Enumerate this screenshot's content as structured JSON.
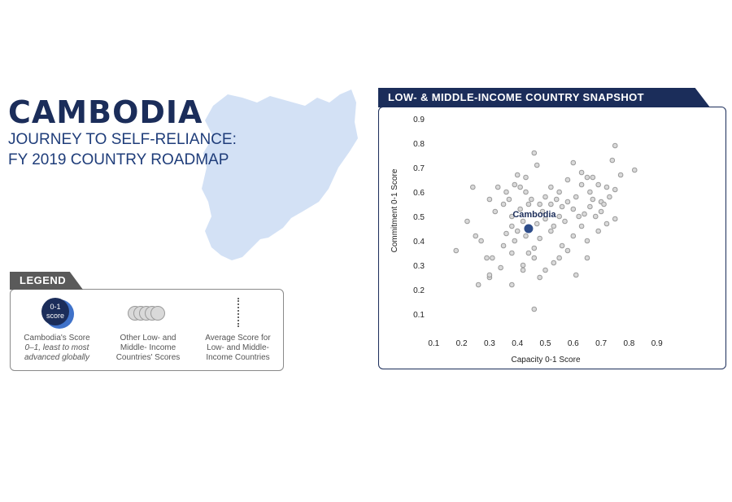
{
  "header": {
    "country": "CAMBODIA",
    "subtitle_line1": "JOURNEY TO SELF-RELIANCE:",
    "subtitle_line2": "FY 2019 COUNTRY ROADMAP"
  },
  "legend": {
    "title": "LEGEND",
    "score_icon_text_1": "0-1",
    "score_icon_text_2": "score",
    "item1_line1": "Cambodia's Score",
    "item1_line2": "0–1, least to most",
    "item1_line3": "advanced globally",
    "item2_line1": "Other Low- and",
    "item2_line2": "Middle- Income",
    "item2_line3": "Countries' Scores",
    "item3_line1": "Average Score for",
    "item3_line2": "Low- and Middle-",
    "item3_line3": "Income Countries"
  },
  "colors": {
    "navy": "#1b2d5a",
    "accent_blue": "#3f72c9",
    "map_fill": "#d3e1f5",
    "point_fill": "#d9d9d9",
    "point_stroke": "#9a9a9a",
    "highlight": "#2e4d8a"
  },
  "chart_data": {
    "type": "scatter",
    "title": "LOW- & MIDDLE-INCOME COUNTRY SNAPSHOT",
    "xlabel": "Capacity 0-1 Score",
    "ylabel": "Commitment 0-1 Score",
    "xlim": [
      0,
      0.9
    ],
    "ylim": [
      0,
      0.9
    ],
    "xticks": [
      "0.1",
      "0.2",
      "0.3",
      "0.4",
      "0.5",
      "0.6",
      "0.7",
      "0.8",
      "0.9"
    ],
    "yticks": [
      "0.1",
      "0.2",
      "0.3",
      "0.4",
      "0.5",
      "0.6",
      "0.7",
      "0.8",
      "0.9"
    ],
    "grid": false,
    "highlight": {
      "label": "Cambodia",
      "x": 0.44,
      "y": 0.45
    },
    "points": [
      [
        0.46,
        0.76
      ],
      [
        0.6,
        0.72
      ],
      [
        0.75,
        0.79
      ],
      [
        0.82,
        0.69
      ],
      [
        0.77,
        0.67
      ],
      [
        0.74,
        0.73
      ],
      [
        0.63,
        0.68
      ],
      [
        0.65,
        0.66
      ],
      [
        0.67,
        0.66
      ],
      [
        0.69,
        0.63
      ],
      [
        0.72,
        0.62
      ],
      [
        0.75,
        0.61
      ],
      [
        0.73,
        0.58
      ],
      [
        0.7,
        0.56
      ],
      [
        0.66,
        0.6
      ],
      [
        0.63,
        0.63
      ],
      [
        0.58,
        0.65
      ],
      [
        0.55,
        0.6
      ],
      [
        0.52,
        0.62
      ],
      [
        0.5,
        0.58
      ],
      [
        0.48,
        0.55
      ],
      [
        0.47,
        0.71
      ],
      [
        0.43,
        0.66
      ],
      [
        0.4,
        0.67
      ],
      [
        0.41,
        0.62
      ],
      [
        0.39,
        0.63
      ],
      [
        0.36,
        0.6
      ],
      [
        0.37,
        0.57
      ],
      [
        0.35,
        0.55
      ],
      [
        0.32,
        0.52
      ],
      [
        0.38,
        0.5
      ],
      [
        0.41,
        0.53
      ],
      [
        0.44,
        0.55
      ],
      [
        0.45,
        0.57
      ],
      [
        0.43,
        0.6
      ],
      [
        0.49,
        0.52
      ],
      [
        0.52,
        0.55
      ],
      [
        0.54,
        0.57
      ],
      [
        0.56,
        0.54
      ],
      [
        0.58,
        0.56
      ],
      [
        0.6,
        0.53
      ],
      [
        0.62,
        0.5
      ],
      [
        0.64,
        0.51
      ],
      [
        0.66,
        0.54
      ],
      [
        0.68,
        0.5
      ],
      [
        0.7,
        0.52
      ],
      [
        0.72,
        0.47
      ],
      [
        0.71,
        0.55
      ],
      [
        0.67,
        0.57
      ],
      [
        0.61,
        0.58
      ],
      [
        0.57,
        0.48
      ],
      [
        0.55,
        0.5
      ],
      [
        0.53,
        0.46
      ],
      [
        0.5,
        0.49
      ],
      [
        0.47,
        0.47
      ],
      [
        0.42,
        0.48
      ],
      [
        0.4,
        0.44
      ],
      [
        0.38,
        0.46
      ],
      [
        0.36,
        0.43
      ],
      [
        0.39,
        0.4
      ],
      [
        0.43,
        0.42
      ],
      [
        0.48,
        0.41
      ],
      [
        0.52,
        0.44
      ],
      [
        0.56,
        0.38
      ],
      [
        0.6,
        0.42
      ],
      [
        0.63,
        0.46
      ],
      [
        0.65,
        0.4
      ],
      [
        0.75,
        0.49
      ],
      [
        0.69,
        0.44
      ],
      [
        0.46,
        0.37
      ],
      [
        0.44,
        0.35
      ],
      [
        0.42,
        0.3
      ],
      [
        0.46,
        0.33
      ],
      [
        0.5,
        0.28
      ],
      [
        0.53,
        0.31
      ],
      [
        0.55,
        0.33
      ],
      [
        0.58,
        0.36
      ],
      [
        0.65,
        0.33
      ],
      [
        0.38,
        0.35
      ],
      [
        0.31,
        0.33
      ],
      [
        0.29,
        0.33
      ],
      [
        0.3,
        0.25
      ],
      [
        0.3,
        0.26
      ],
      [
        0.26,
        0.22
      ],
      [
        0.18,
        0.36
      ],
      [
        0.27,
        0.4
      ],
      [
        0.25,
        0.42
      ],
      [
        0.22,
        0.48
      ],
      [
        0.24,
        0.62
      ],
      [
        0.3,
        0.57
      ],
      [
        0.33,
        0.62
      ],
      [
        0.38,
        0.22
      ],
      [
        0.42,
        0.28
      ],
      [
        0.48,
        0.25
      ],
      [
        0.61,
        0.26
      ],
      [
        0.46,
        0.12
      ],
      [
        0.35,
        0.38
      ],
      [
        0.34,
        0.29
      ]
    ]
  }
}
